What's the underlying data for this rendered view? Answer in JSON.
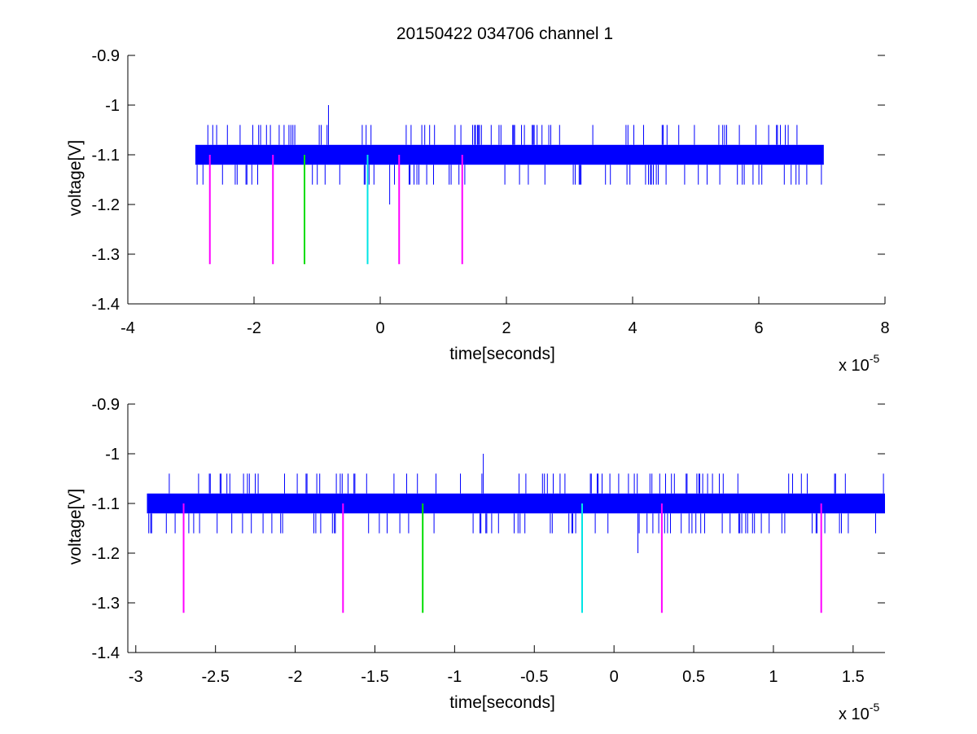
{
  "title": "20150422 034706 channel 1",
  "colors": {
    "signal": "#0000ff",
    "marker_magenta": "#ff00ff",
    "marker_green": "#00dd00",
    "marker_cyan": "#00e5e5",
    "axes": "#000000",
    "background": "#ffffff"
  },
  "chart_data": [
    {
      "type": "line",
      "title": "20150422 034706 channel 1",
      "xlabel": "time[seconds]",
      "ylabel": "voltage[V]",
      "x_scale_label": "x 10",
      "x_scale_exponent": "-5",
      "xlim": [
        -4,
        8
      ],
      "ylim": [
        -1.4,
        -0.9
      ],
      "xticks": [
        -4,
        -2,
        0,
        2,
        4,
        6,
        8
      ],
      "xtick_labels": [
        "-4",
        "-2",
        "0",
        "2",
        "4",
        "6",
        "8"
      ],
      "yticks": [
        -1.4,
        -1.3,
        -1.2,
        -1.1,
        -1,
        -0.9
      ],
      "ytick_labels": [
        "-1.4",
        "-1.3",
        "-1.2",
        "-1.1",
        "-1",
        "-0.9"
      ],
      "grid": false,
      "series": [
        {
          "role": "signal",
          "color": "#0000ff",
          "x_range": [
            -2.93,
            7.03
          ],
          "band": [
            -1.12,
            -1.08
          ],
          "upper_spike_levels": [
            -1.04
          ],
          "lower_spike_levels": [
            -1.16
          ],
          "spike_outliers": [
            {
              "x": -0.82,
              "y": -1.0
            },
            {
              "x": 0.15,
              "y": -1.2
            }
          ]
        }
      ],
      "markers": [
        {
          "x": -2.7,
          "y_top": -1.1,
          "y_bottom": -1.32,
          "color": "#ff00ff"
        },
        {
          "x": -1.7,
          "y_top": -1.1,
          "y_bottom": -1.32,
          "color": "#ff00ff"
        },
        {
          "x": -1.2,
          "y_top": -1.1,
          "y_bottom": -1.32,
          "color": "#00dd00"
        },
        {
          "x": -0.2,
          "y_top": -1.1,
          "y_bottom": -1.32,
          "color": "#00e5e5"
        },
        {
          "x": 0.3,
          "y_top": -1.1,
          "y_bottom": -1.32,
          "color": "#ff00ff"
        },
        {
          "x": 1.3,
          "y_top": -1.1,
          "y_bottom": -1.32,
          "color": "#ff00ff"
        }
      ]
    },
    {
      "type": "line",
      "title": "",
      "xlabel": "time[seconds]",
      "ylabel": "voltage[V]",
      "x_scale_label": "x 10",
      "x_scale_exponent": "-5",
      "xlim": [
        -3.05,
        1.7
      ],
      "ylim": [
        -1.4,
        -0.9
      ],
      "xticks": [
        -3,
        -2.5,
        -2,
        -1.5,
        -1,
        -0.5,
        0,
        0.5,
        1,
        1.5
      ],
      "xtick_labels": [
        "-3",
        "-2.5",
        "-2",
        "-1.5",
        "-1",
        "-0.5",
        "0",
        "0.5",
        "1",
        "1.5"
      ],
      "yticks": [
        -1.4,
        -1.3,
        -1.2,
        -1.1,
        -1,
        -0.9
      ],
      "ytick_labels": [
        "-1.4",
        "-1.3",
        "-1.2",
        "-1.1",
        "-1",
        "-0.9"
      ],
      "grid": false,
      "series": [
        {
          "role": "signal",
          "color": "#0000ff",
          "x_range": [
            -2.93,
            1.7
          ],
          "band": [
            -1.12,
            -1.08
          ],
          "upper_spike_levels": [
            -1.04
          ],
          "lower_spike_levels": [
            -1.16
          ],
          "spike_outliers": [
            {
              "x": -0.82,
              "y": -1.0
            },
            {
              "x": 0.15,
              "y": -1.2
            }
          ]
        }
      ],
      "markers": [
        {
          "x": -2.7,
          "y_top": -1.1,
          "y_bottom": -1.32,
          "color": "#ff00ff"
        },
        {
          "x": -1.7,
          "y_top": -1.1,
          "y_bottom": -1.32,
          "color": "#ff00ff"
        },
        {
          "x": -1.2,
          "y_top": -1.1,
          "y_bottom": -1.32,
          "color": "#00dd00"
        },
        {
          "x": -0.2,
          "y_top": -1.1,
          "y_bottom": -1.32,
          "color": "#00e5e5"
        },
        {
          "x": 0.3,
          "y_top": -1.1,
          "y_bottom": -1.32,
          "color": "#ff00ff"
        },
        {
          "x": 1.3,
          "y_top": -1.1,
          "y_bottom": -1.32,
          "color": "#ff00ff"
        }
      ]
    }
  ]
}
